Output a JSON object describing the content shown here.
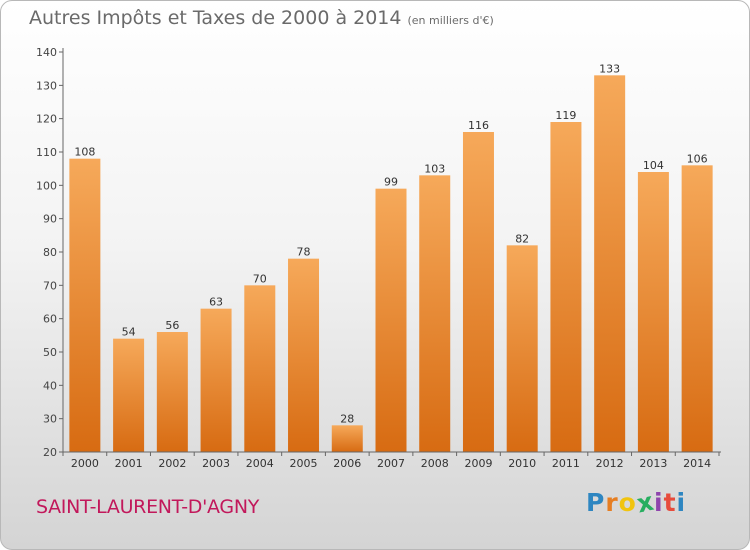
{
  "header": {
    "title": "Autres Impôts et Taxes de 2000 à 2014",
    "unit": "(en milliers d'€)"
  },
  "footer": {
    "commune": "SAINT-LAURENT-D'AGNY",
    "brand_letters": [
      "P",
      "r",
      "o",
      "x",
      "i",
      "t",
      "i"
    ],
    "brand_colors": [
      "#2e86c1",
      "#e67e22",
      "#f1c40f",
      "#27ae60",
      "#8e44ad",
      "#e74c3c",
      "#2e86c1"
    ]
  },
  "colors": {
    "bar_top": "#f6a95a",
    "bar_bottom": "#d76b12",
    "commune": "#c2185b",
    "axis": "#666666"
  },
  "chart_data": {
    "type": "bar",
    "title": "Autres Impôts et Taxes de 2000 à 2014",
    "subtitle": "(en milliers d'€)",
    "categories": [
      "2000",
      "2001",
      "2002",
      "2003",
      "2004",
      "2005",
      "2006",
      "2007",
      "2008",
      "2009",
      "2010",
      "2011",
      "2012",
      "2013",
      "2014"
    ],
    "values": [
      108,
      54,
      56,
      63,
      70,
      78,
      28,
      99,
      103,
      116,
      82,
      119,
      133,
      104,
      106
    ],
    "yticks": [
      20,
      30,
      40,
      50,
      60,
      70,
      80,
      90,
      100,
      110,
      120,
      130,
      140
    ],
    "ylim": [
      20,
      140
    ],
    "grid": false,
    "legend": "none"
  }
}
